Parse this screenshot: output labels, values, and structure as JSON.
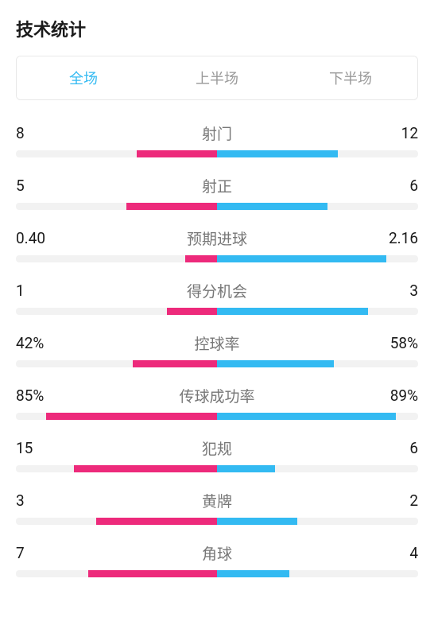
{
  "title": "技术统计",
  "tabs": [
    {
      "label": "全场",
      "active": true
    },
    {
      "label": "上半场",
      "active": false
    },
    {
      "label": "下半场",
      "active": false
    }
  ],
  "colors": {
    "left_bar": "#ed2a7b",
    "right_bar": "#33baf2",
    "bar_bg": "#f2f2f2",
    "active_tab": "#33baf2",
    "inactive_tab": "#999999",
    "label_text": "#777777",
    "value_text": "#1a1a1a"
  },
  "stats": [
    {
      "label": "射门",
      "left_value": "8",
      "right_value": "12",
      "left_pct": 40,
      "right_pct": 60
    },
    {
      "label": "射正",
      "left_value": "5",
      "right_value": "6",
      "left_pct": 45,
      "right_pct": 55
    },
    {
      "label": "预期进球",
      "left_value": "0.40",
      "right_value": "2.16",
      "left_pct": 16,
      "right_pct": 84
    },
    {
      "label": "得分机会",
      "left_value": "1",
      "right_value": "3",
      "left_pct": 25,
      "right_pct": 75
    },
    {
      "label": "控球率",
      "left_value": "42%",
      "right_value": "58%",
      "left_pct": 42,
      "right_pct": 58
    },
    {
      "label": "传球成功率",
      "left_value": "85%",
      "right_value": "89%",
      "left_pct": 85,
      "right_pct": 89
    },
    {
      "label": "犯规",
      "left_value": "15",
      "right_value": "6",
      "left_pct": 71,
      "right_pct": 29
    },
    {
      "label": "黄牌",
      "left_value": "3",
      "right_value": "2",
      "left_pct": 60,
      "right_pct": 40
    },
    {
      "label": "角球",
      "left_value": "7",
      "right_value": "4",
      "left_pct": 64,
      "right_pct": 36
    }
  ]
}
